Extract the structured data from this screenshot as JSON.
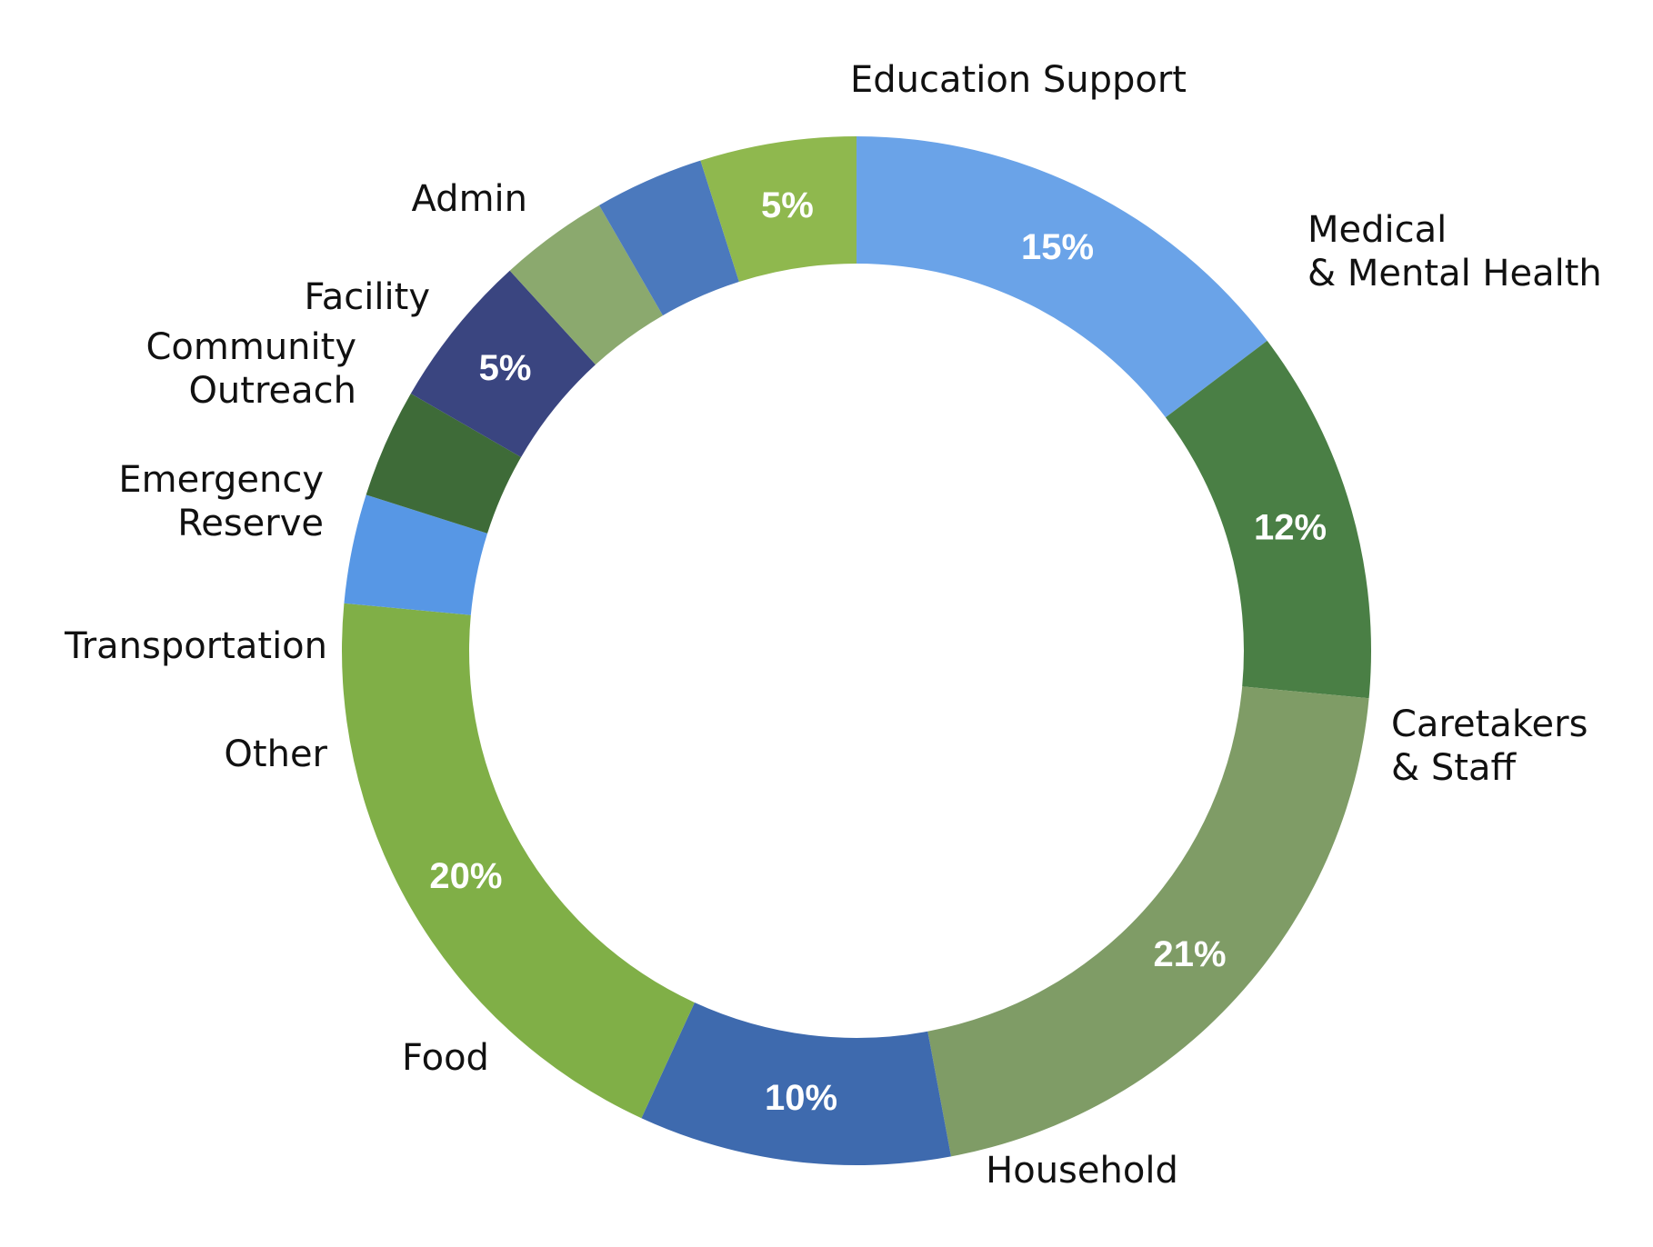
{
  "chart_data": {
    "type": "pie",
    "donut": true,
    "start": "top",
    "direction": "clockwise",
    "slices": [
      {
        "label": [
          "Education Support"
        ],
        "value": 15,
        "pct_label": "15%",
        "color": "#6aa3e8"
      },
      {
        "label": [
          "Medical",
          "& Mental Health"
        ],
        "value": 12,
        "pct_label": "12%",
        "color": "#4a7f45"
      },
      {
        "label": [
          "Caretakers",
          "& Staff"
        ],
        "value": 21,
        "pct_label": "21%",
        "color": "#7f9c66"
      },
      {
        "label": [
          "Household"
        ],
        "value": 10,
        "pct_label": "10%",
        "color": "#3e6aae"
      },
      {
        "label": [
          "Food"
        ],
        "value": 20,
        "pct_label": "20%",
        "color": "#80af47"
      },
      {
        "label": [
          "Other"
        ],
        "value": 3.5,
        "pct_label": "",
        "color": "#5797e5"
      },
      {
        "label": [
          "Transportation"
        ],
        "value": 3.5,
        "pct_label": "",
        "color": "#3e6b38"
      },
      {
        "label": [
          "Emergency",
          "Reserve"
        ],
        "value": 5,
        "pct_label": "5%",
        "color": "#3a4580"
      },
      {
        "label": [
          "Community",
          "Outreach"
        ],
        "value": 3.5,
        "pct_label": "",
        "color": "#8ba96e"
      },
      {
        "label": [
          "Facility"
        ],
        "value": 3.5,
        "pct_label": "",
        "color": "#4b79bd"
      },
      {
        "label": [
          "Admin"
        ],
        "value": 5,
        "pct_label": "5%",
        "color": "#8fb84e"
      }
    ]
  }
}
